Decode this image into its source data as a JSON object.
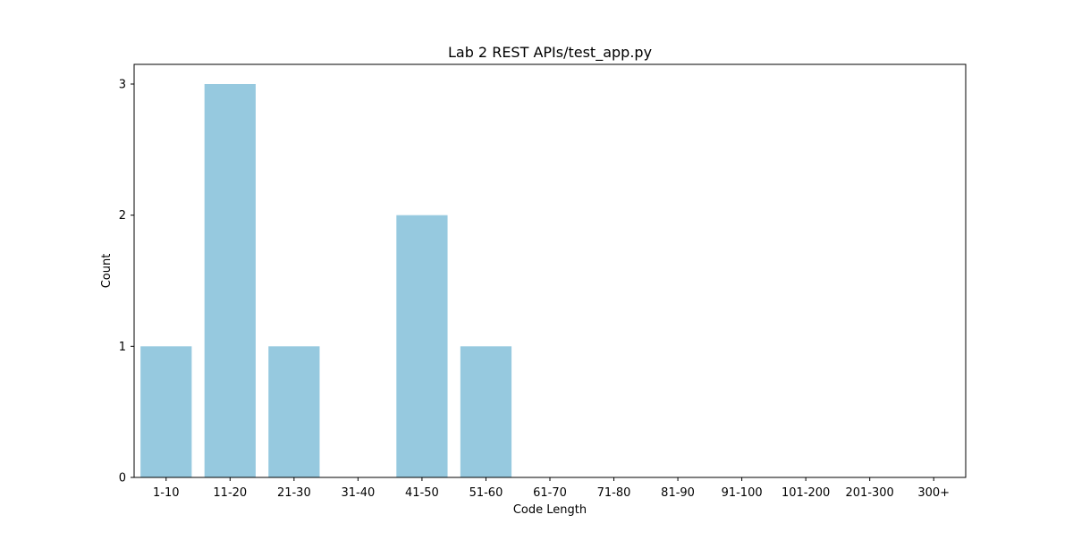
{
  "chart_data": {
    "type": "bar",
    "title": "Lab 2 REST APIs/test_app.py",
    "xlabel": "Code Length",
    "ylabel": "Count",
    "categories": [
      "1-10",
      "11-20",
      "21-30",
      "31-40",
      "41-50",
      "51-60",
      "61-70",
      "71-80",
      "81-90",
      "91-100",
      "101-200",
      "201-300",
      "300+"
    ],
    "values": [
      1,
      3,
      1,
      0,
      2,
      1,
      0,
      0,
      0,
      0,
      0,
      0,
      0
    ],
    "ylim": [
      0,
      3.15
    ],
    "yticks": [
      0,
      1,
      2,
      3
    ],
    "grid": false,
    "bar_color": "#96c9df"
  }
}
